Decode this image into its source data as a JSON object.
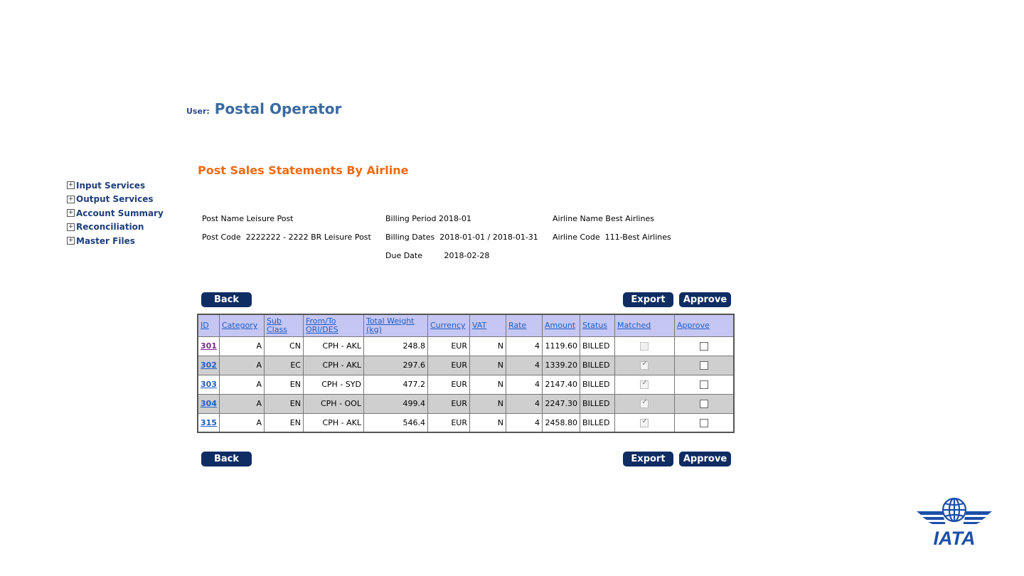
{
  "user": {
    "label": "User:",
    "name": "Postal Operator"
  },
  "nav": {
    "items": [
      {
        "label": "Input Services"
      },
      {
        "label": "Output Services"
      },
      {
        "label": "Account Summary"
      },
      {
        "label": "Reconciliation"
      },
      {
        "label": "Master Files"
      }
    ],
    "expand_glyph": "+"
  },
  "page_title": "Post Sales Statements By Airline",
  "info": {
    "post_name_label": "Post Name",
    "post_name_value": "Leisure Post",
    "post_code_label": "Post Code",
    "post_code_value": "2222222 - 2222 BR Leisure Post",
    "billing_period_label": "Billing Period",
    "billing_period_value": "2018-01",
    "billing_dates_label": "Billing Dates",
    "billing_dates_value": "2018-01-01 / 2018-01-31",
    "due_date_label": "Due Date",
    "due_date_value": "2018-02-28",
    "airline_name_label": "Airline Name",
    "airline_name_value": "Best Airlines",
    "airline_code_label": "Airline Code",
    "airline_code_value": "111-Best Airlines"
  },
  "buttons": {
    "back": "Back",
    "export": "Export",
    "approve": "Approve"
  },
  "table": {
    "headers": {
      "id": "ID",
      "category": "Category",
      "sub_class_1": "Sub",
      "sub_class_2": "Class",
      "from_to_1": "From/To",
      "from_to_2": "ORI/DES",
      "total_weight_1": "Total Weight",
      "total_weight_2": "(kg)",
      "currency": "Currency",
      "vat": "VAT",
      "rate": "Rate",
      "amount": "Amount",
      "status": "Status",
      "matched": "Matched",
      "approve": "Approve"
    },
    "rows": [
      {
        "id": "301",
        "category": "A",
        "sub_class": "CN",
        "from_to": "CPH - AKL",
        "total_weight": "248.8",
        "currency": "EUR",
        "vat": "N",
        "rate": "4",
        "amount": "1119.60",
        "status": "BILLED",
        "matched": false,
        "approve": false
      },
      {
        "id": "302",
        "category": "A",
        "sub_class": "EC",
        "from_to": "CPH - AKL",
        "total_weight": "297.6",
        "currency": "EUR",
        "vat": "N",
        "rate": "4",
        "amount": "1339.20",
        "status": "BILLED",
        "matched": true,
        "approve": false
      },
      {
        "id": "303",
        "category": "A",
        "sub_class": "EN",
        "from_to": "CPH - SYD",
        "total_weight": "477.2",
        "currency": "EUR",
        "vat": "N",
        "rate": "4",
        "amount": "2147.40",
        "status": "BILLED",
        "matched": true,
        "approve": false
      },
      {
        "id": "304",
        "category": "A",
        "sub_class": "EN",
        "from_to": "CPH - OOL",
        "total_weight": "499.4",
        "currency": "EUR",
        "vat": "N",
        "rate": "4",
        "amount": "2247.30",
        "status": "BILLED",
        "matched": true,
        "approve": false
      },
      {
        "id": "315",
        "category": "A",
        "sub_class": "EN",
        "from_to": "CPH - AKL",
        "total_weight": "546.4",
        "currency": "EUR",
        "vat": "N",
        "rate": "4",
        "amount": "2458.80",
        "status": "BILLED",
        "matched": true,
        "approve": false
      }
    ]
  },
  "logo": {
    "text": "IATA",
    "color": "#1c4fa8"
  }
}
